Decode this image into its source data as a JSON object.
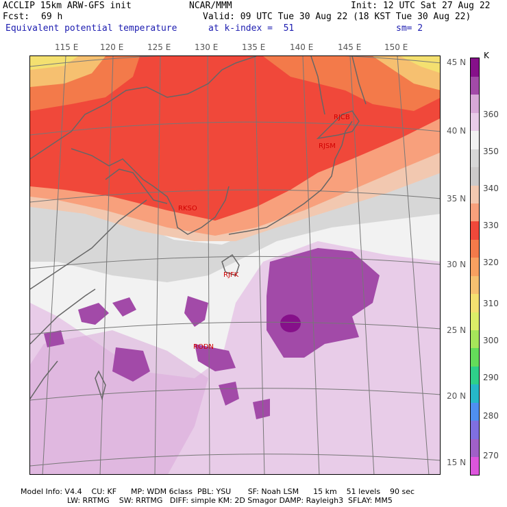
{
  "header": {
    "line1_left": "ACCLIP 15km ARW-GFS init",
    "line1_center": "NCAR/MMM",
    "line1_right": "Init: 12 UTC Sat 27 Aug 22",
    "fcst_label": "Fcst:",
    "fcst_value": "69 h",
    "valid": "Valid: 09 UTC Tue 30 Aug 22 (18 KST Tue 30 Aug 22)",
    "field_name": "Equivalent potential temperature",
    "level": "at k-index =  51",
    "smoothing": "sm= 2"
  },
  "longitude_labels": [
    "115 E",
    "120 E",
    "125 E",
    "130 E",
    "135 E",
    "140 E",
    "145 E",
    "150 E"
  ],
  "latitude_labels": [
    "45 N",
    "40 N",
    "35 N",
    "30 N",
    "25 N",
    "20 N",
    "15 N"
  ],
  "stations": [
    "RJCB",
    "RJSM",
    "RKSO",
    "RJFK",
    "RODN"
  ],
  "colorbar": {
    "unit": "K",
    "tick_labels": [
      "360",
      "350",
      "340",
      "330",
      "320",
      "310",
      "300",
      "290",
      "280",
      "270"
    ],
    "colors": [
      "#dd55dd",
      "#a060c8",
      "#7f6fe0",
      "#4f8ff0",
      "#26b8c8",
      "#2ed08a",
      "#64dd5a",
      "#a6e65a",
      "#dcee68",
      "#f4e070",
      "#f6c070",
      "#f8a060",
      "#f37a4a",
      "#f0483a",
      "#f8a07c",
      "#f2c8b0",
      "#cccaca",
      "#d7d7d7",
      "#f2f2f2",
      "#e8cce8",
      "#d8a8d8",
      "#a24aa8",
      "#86108a"
    ]
  },
  "footer": {
    "line1": "Model Info: V4.4    CU: KF      MP: WDM 6class  PBL: YSU       SF: Noah LSM      15 km    51 levels    90 sec",
    "line2": "LW: RRTMG    SW: RRTMG   DIFF: simple KM: 2D Smagor DAMP: Rayleigh3  SFLAY: MM5"
  }
}
